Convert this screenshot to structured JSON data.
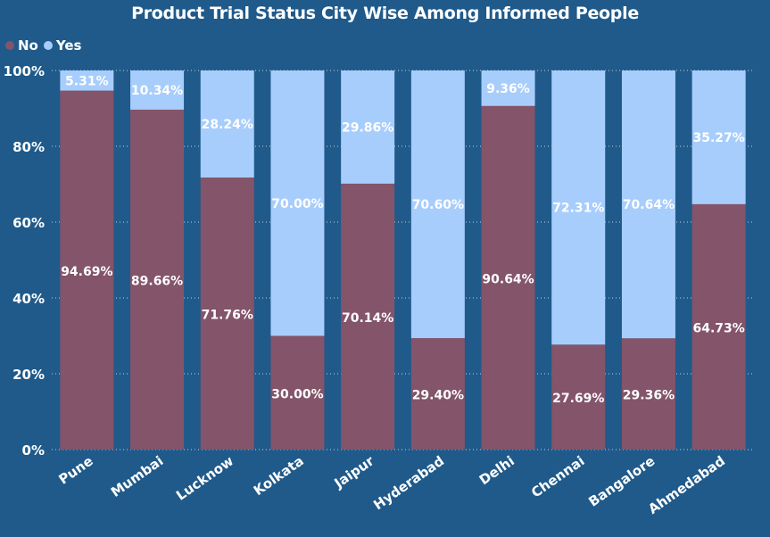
{
  "chart_data": {
    "type": "bar",
    "stacked": true,
    "percent_stacked": true,
    "title": "Product Trial Status City Wise Among Informed People",
    "categories": [
      "Pune",
      "Mumbai",
      "Lucknow",
      "Kolkata",
      "Jaipur",
      "Hyderabad",
      "Delhi",
      "Chennai",
      "Bangalore",
      "Ahmedabad"
    ],
    "series": [
      {
        "name": "No",
        "color": "#83546a",
        "values": [
          94.69,
          89.66,
          71.76,
          30.0,
          70.14,
          29.4,
          90.64,
          27.69,
          29.36,
          64.73
        ],
        "labels": [
          "94.69%",
          "89.66%",
          "71.76%",
          "30.00%",
          "70.14%",
          "29.40%",
          "90.64%",
          "27.69%",
          "29.36%",
          "64.73%"
        ]
      },
      {
        "name": "Yes",
        "color": "#a7cdfc",
        "values": [
          5.31,
          10.34,
          28.24,
          70.0,
          29.86,
          70.6,
          9.36,
          72.31,
          70.64,
          35.27
        ],
        "labels": [
          "5.31%",
          "10.34%",
          "28.24%",
          "70.00%",
          "29.86%",
          "70.60%",
          "9.36%",
          "72.31%",
          "70.64%",
          "35.27%"
        ]
      }
    ],
    "ylim": [
      0,
      100
    ],
    "yticks": [
      "0%",
      "20%",
      "40%",
      "60%",
      "80%",
      "100%"
    ],
    "grid": true,
    "legend_position": "top-left"
  }
}
